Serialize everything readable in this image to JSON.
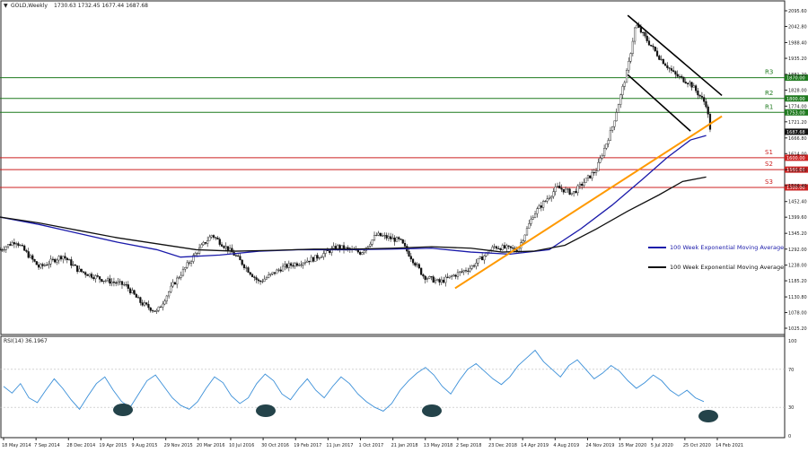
{
  "header": {
    "symbol": "GOLD,Weekly",
    "ohlc": "1730.63 1732.45 1677.44 1687.68"
  },
  "chart_data": [
    {
      "type": "candlestick",
      "title": "GOLD,Weekly",
      "last_price": 1687.68,
      "x_ticks": [
        "18 May 2014",
        "7 Sep 2014",
        "28 Dec 2014",
        "19 Apr 2015",
        "9 Aug 2015",
        "29 Nov 2015",
        "20 Mar 2016",
        "10 Jul 2016",
        "30 Oct 2016",
        "19 Feb 2017",
        "11 Jun 2017",
        "1 Oct 2017",
        "21 Jan 2018",
        "13 May 2018",
        "2 Sep 2018",
        "23 Dec 2018",
        "14 Apr 2019",
        "4 Aug 2019",
        "24 Nov 2019",
        "15 Mar 2020",
        "5 Jul 2020",
        "25 Oct 2020",
        "14 Feb 2021"
      ],
      "y_ticks": [
        2095.6,
        2042.8,
        1988.4,
        1935.2,
        1881.2,
        1828.0,
        1774.0,
        1721.2,
        1666.8,
        1614.0,
        1559.6,
        1506.4,
        1452.4,
        1399.6,
        1345.2,
        1292.0,
        1238.0,
        1185.2,
        1130.8,
        1078.0,
        1025.2
      ],
      "ylim": [
        1025.2,
        2120
      ],
      "horizontal_levels": [
        {
          "label": "R3",
          "value": 1870.0,
          "price_tag": "1870.00",
          "color": "#1f7a1f"
        },
        {
          "label": "R2",
          "value": 1800.0,
          "price_tag": "1800.00",
          "color": "#1f7a1f"
        },
        {
          "label": "R1",
          "value": 1753.0,
          "price_tag": "1753.00",
          "color": "#1f7a1f"
        },
        {
          "label": "S1",
          "value": 1600.0,
          "price_tag": "1600.00",
          "color": "#cc2222"
        },
        {
          "label": "S2",
          "value": 1560.0,
          "price_tag": "1560.00",
          "color": "#cc2222"
        },
        {
          "label": "S3",
          "value": 1500.0,
          "price_tag": "1500.00",
          "color": "#cc2222"
        }
      ],
      "series": [
        {
          "name": "100 Week Exponential Moving Average",
          "color": "#1a1aaa",
          "x": [
            0,
            0.05,
            0.1,
            0.15,
            0.2,
            0.23,
            0.28,
            0.33,
            0.38,
            0.44,
            0.5,
            0.55,
            0.6,
            0.65,
            0.7,
            0.74,
            0.78,
            0.82,
            0.85,
            0.88,
            0.9
          ],
          "values": [
            1400,
            1375,
            1345,
            1315,
            1290,
            1265,
            1272,
            1285,
            1290,
            1290,
            1292,
            1295,
            1282,
            1275,
            1290,
            1360,
            1440,
            1530,
            1600,
            1660,
            1675
          ]
        },
        {
          "name": "100 Week Exponential Moving Average",
          "color": "#111111",
          "x": [
            0,
            0.05,
            0.1,
            0.15,
            0.2,
            0.25,
            0.3,
            0.35,
            0.4,
            0.45,
            0.5,
            0.55,
            0.6,
            0.64,
            0.68,
            0.72,
            0.76,
            0.8,
            0.84,
            0.87,
            0.9
          ],
          "values": [
            1400,
            1380,
            1355,
            1330,
            1310,
            1290,
            1285,
            1288,
            1292,
            1292,
            1295,
            1300,
            1295,
            1282,
            1285,
            1305,
            1360,
            1420,
            1475,
            1520,
            1535
          ]
        }
      ],
      "annotations": [
        {
          "type": "trendline",
          "color": "#ff9900",
          "points": [
            [
              0.58,
              1160
            ],
            [
              0.92,
              1740
            ]
          ]
        },
        {
          "type": "channel-upper",
          "color": "#000000",
          "points": [
            [
              0.8,
              2080
            ],
            [
              0.92,
              1810
            ]
          ]
        },
        {
          "type": "channel-lower",
          "color": "#000000",
          "points": [
            [
              0.8,
              1880
            ],
            [
              0.88,
              1690
            ]
          ]
        }
      ]
    },
    {
      "type": "line",
      "title": "RSI(14) 36.1967",
      "y_ticks": [
        100,
        70,
        30,
        0
      ],
      "ylim": [
        0,
        100
      ],
      "color": "#3a8fd8",
      "values": [
        52,
        45,
        55,
        40,
        35,
        48,
        60,
        50,
        38,
        28,
        42,
        55,
        62,
        48,
        36,
        30,
        44,
        58,
        64,
        52,
        40,
        32,
        28,
        36,
        50,
        62,
        56,
        42,
        34,
        40,
        55,
        65,
        58,
        44,
        38,
        50,
        60,
        48,
        40,
        52,
        62,
        55,
        44,
        36,
        30,
        26,
        34,
        48,
        58,
        66,
        72,
        64,
        52,
        44,
        58,
        70,
        76,
        68,
        60,
        54,
        62,
        74,
        82,
        90,
        78,
        70,
        62,
        74,
        80,
        70,
        60,
        66,
        74,
        68,
        58,
        50,
        56,
        64,
        58,
        48,
        42,
        48,
        40,
        36
      ]
    }
  ],
  "legend": [
    {
      "label": "100 Week Exponential Moving Average",
      "color": "#1a1aaa"
    },
    {
      "label": "100 Week Exponential Moving Average",
      "color": "#111111"
    }
  ]
}
